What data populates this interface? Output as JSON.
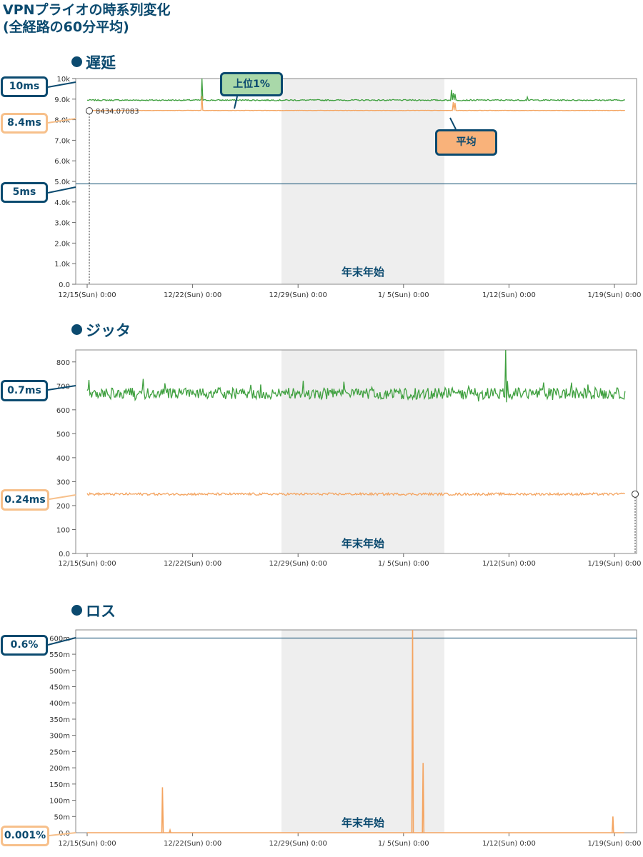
{
  "page": {
    "title_line1": "VPNプライオの時系列変化",
    "title_line2": "(全経路の60分平均)"
  },
  "colors": {
    "green": "#3fa03f",
    "light_green": "#8dcf8d",
    "orange": "#f4a460",
    "navy": "#0b4a6f",
    "band": "#eeeeee",
    "grid": "#999999"
  },
  "common": {
    "x_ticks": [
      "12/15(Sun) 0:00",
      "12/22(Sun) 0:00",
      "12/29(Sun) 0:00",
      "1/ 5(Sun) 0:00",
      "1/12(Sun) 0:00",
      "1/19(Sun) 0:00"
    ],
    "band_label": "年末年始"
  },
  "charts": {
    "latency": {
      "section": "遅延",
      "yticks": [
        "0.0",
        "1.0k",
        "2.0k",
        "3.0k",
        "4.0k",
        "5.0k",
        "6.0k",
        "7.0k",
        "8.0k",
        "9.0k",
        "10k"
      ],
      "tooltip": "8434.07083",
      "callouts": {
        "c10": "10ms",
        "c84": "8.4ms",
        "c5": "5ms",
        "top1": "上位1%",
        "avg": "平均"
      }
    },
    "jitter": {
      "section": "ジッタ",
      "yticks": [
        "0.0",
        "100",
        "200",
        "300",
        "400",
        "500",
        "600",
        "700",
        "800"
      ],
      "callouts": {
        "c07": "0.7ms",
        "c024": "0.24ms"
      }
    },
    "loss": {
      "section": "ロス",
      "yticks": [
        "0.0",
        "50m",
        "100m",
        "150m",
        "200m",
        "250m",
        "300m",
        "350m",
        "400m",
        "450m",
        "500m",
        "550m",
        "600m"
      ],
      "callouts": {
        "c06": "0.6%",
        "c0001": "0.001%"
      }
    }
  },
  "chart_data": [
    {
      "type": "line",
      "title": "遅延",
      "x_range": [
        "12/15 0:00",
        "1/19 0:00+"
      ],
      "ylim": [
        0,
        10000
      ],
      "reference_line": 4880,
      "shaded_period": {
        "label": "年末年始",
        "from": "12/27 12:00",
        "to": "1/7 3:00"
      },
      "series": [
        {
          "name": "上位1%",
          "color": "green",
          "baseline": 8950,
          "noise": 30,
          "spikes": [
            {
              "day": 7.6,
              "value": 10300
            },
            {
              "day": 24.2,
              "value": 9450
            },
            {
              "day": 24.3,
              "value": 9300
            },
            {
              "day": 24.4,
              "value": 9250
            },
            {
              "day": 29.2,
              "value": 9100
            }
          ]
        },
        {
          "name": "平均",
          "color": "orange",
          "baseline": 8450,
          "noise": 8,
          "spikes": [
            {
              "day": 7.6,
              "value": 9150
            },
            {
              "day": 24.3,
              "value": 8850
            },
            {
              "day": 24.4,
              "value": 8820
            }
          ]
        }
      ]
    },
    {
      "type": "line",
      "title": "ジッタ",
      "x_range": [
        "12/15 0:00",
        "1/19 0:00+"
      ],
      "ylim": [
        0,
        850
      ],
      "shaded_period": {
        "label": "年末年始",
        "from": "12/27 12:00",
        "to": "1/7 3:00"
      },
      "series": [
        {
          "name": "上位1%",
          "color": "green",
          "baseline": 668,
          "noise": 24,
          "spikes": [
            {
              "day": 27.8,
              "value": 850
            },
            {
              "day": 27.9,
              "value": 720
            }
          ]
        },
        {
          "name": "平均",
          "color": "orange",
          "baseline": 248,
          "noise": 5,
          "spikes": []
        }
      ]
    },
    {
      "type": "line",
      "title": "ロス",
      "x_range": [
        "12/15 0:00",
        "1/19 0:00+"
      ],
      "ylim": [
        0,
        625
      ],
      "reference_line": 600,
      "shaded_period": {
        "label": "年末年始",
        "from": "12/27 12:00",
        "to": "1/7 3:00"
      },
      "series": [
        {
          "name": "平均",
          "color": "orange",
          "baseline": 0,
          "noise": 0,
          "spikes": [
            {
              "day": 5.0,
              "value": 140
            },
            {
              "day": 5.5,
              "value": 8
            },
            {
              "day": 21.6,
              "value": 625
            },
            {
              "day": 22.3,
              "value": 215
            },
            {
              "day": 34.9,
              "value": 50
            }
          ]
        }
      ]
    }
  ]
}
